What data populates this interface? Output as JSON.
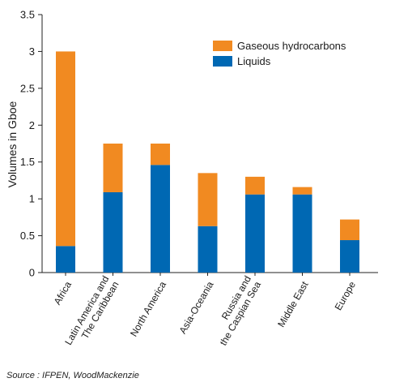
{
  "chart_data": {
    "type": "bar",
    "stacked": true,
    "ylabel": "Volumes in Gboe",
    "ylim": [
      0,
      3.5
    ],
    "yticks": [
      "0",
      "0.5",
      "1",
      "1.5",
      "2",
      "2.5",
      "3",
      "3.5"
    ],
    "categories": [
      "Africa",
      "Latin America and\nThe Caribbean",
      "North America",
      "Asia-Oceania",
      "Russia and\nthe Caspian Sea",
      "Middle East",
      "Europe"
    ],
    "series": [
      {
        "name": "Liquids",
        "color": "#0068b3",
        "values": [
          0.36,
          1.09,
          1.46,
          0.63,
          1.06,
          1.06,
          0.44
        ]
      },
      {
        "name": "Gaseous hydrocarbons",
        "color": "#f18a21",
        "values": [
          2.64,
          0.66,
          0.29,
          0.72,
          0.24,
          0.1,
          0.28
        ]
      }
    ],
    "legend": {
      "placement": "top-right",
      "order": [
        "Gaseous hydrocarbons",
        "Liquids"
      ]
    },
    "grid": false,
    "source": "Source : IFPEN, WoodMackenzie"
  }
}
